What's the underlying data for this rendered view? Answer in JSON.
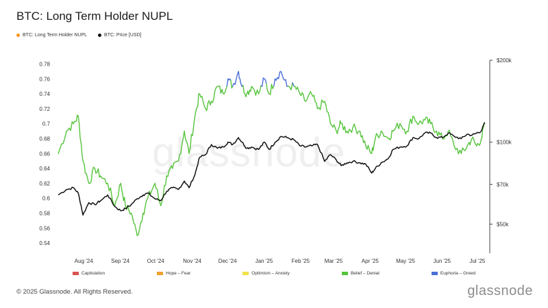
{
  "header": {
    "title": "BTC: Long Term Holder NUPL"
  },
  "legend": [
    {
      "label": "BTC: Long Term Holder NUPL",
      "color": "#f7931a"
    },
    {
      "label": "BTC: Price [USD]",
      "color": "#111111"
    }
  ],
  "regimes": [
    {
      "label": "Capitulation",
      "color": "#d9534f"
    },
    {
      "label": "Hope – Fear",
      "color": "#f0a030"
    },
    {
      "label": "Optimism – Anxiety",
      "color": "#f2e14a"
    },
    {
      "label": "Belief – Denial",
      "color": "#55c43b"
    },
    {
      "label": "Euphoria – Greed",
      "color": "#4a6fd8"
    }
  ],
  "footer": {
    "copyright": "© 2025 Glassnode. All Rights Reserved.",
    "brand": "glassnode"
  },
  "watermark": "glassnode",
  "chart_data": {
    "type": "line",
    "title": "BTC: Long Term Holder NUPL",
    "x_ticks": [
      "Aug '24",
      "Sep '24",
      "Oct '24",
      "Nov '24",
      "Dec '24",
      "Jan '25",
      "Feb '25",
      "Mar '25",
      "Apr '25",
      "May '25",
      "Jun '25",
      "Jul '25"
    ],
    "y_left_ticks": [
      "0.54",
      "0.56",
      "0.58",
      "0.6",
      "0.62",
      "0.64",
      "0.66",
      "0.68",
      "0.7",
      "0.72",
      "0.74",
      "0.76",
      "0.78"
    ],
    "y_left_range": [
      0.53,
      0.785
    ],
    "y_right_ticks": [
      "$50k",
      "$70k",
      "$100k",
      "$200k"
    ],
    "y_right_tick_values": [
      50000,
      70000,
      100000,
      200000
    ],
    "y_right_scale": "log",
    "y_right_range": [
      40000,
      200000
    ],
    "x_range": [
      "2024-07-15",
      "2025-07-15"
    ],
    "grid": false,
    "series": [
      {
        "name": "BTC: Long Term Holder NUPL",
        "axis": "left",
        "colored_by_regime": true,
        "x": [
          "2024-07-15",
          "2024-07-22",
          "2024-07-28",
          "2024-08-01",
          "2024-08-05",
          "2024-08-10",
          "2024-08-15",
          "2024-08-20",
          "2024-08-26",
          "2024-09-01",
          "2024-09-06",
          "2024-09-10",
          "2024-09-15",
          "2024-09-20",
          "2024-09-25",
          "2024-09-29",
          "2024-10-05",
          "2024-10-10",
          "2024-10-15",
          "2024-10-20",
          "2024-10-25",
          "2024-10-30",
          "2024-11-03",
          "2024-11-08",
          "2024-11-12",
          "2024-11-17",
          "2024-11-22",
          "2024-11-27",
          "2024-12-02",
          "2024-12-06",
          "2024-12-10",
          "2024-12-15",
          "2024-12-18",
          "2024-12-22",
          "2024-12-26",
          "2025-01-01",
          "2025-01-06",
          "2025-01-10",
          "2025-01-15",
          "2025-01-20",
          "2025-01-25",
          "2025-01-31",
          "2025-02-05",
          "2025-02-10",
          "2025-02-15",
          "2025-02-20",
          "2025-02-26",
          "2025-03-03",
          "2025-03-08",
          "2025-03-12",
          "2025-03-17",
          "2025-03-22",
          "2025-03-28",
          "2025-04-02",
          "2025-04-07",
          "2025-04-10",
          "2025-04-15",
          "2025-04-21",
          "2025-04-25",
          "2025-05-01",
          "2025-05-07",
          "2025-05-12",
          "2025-05-17",
          "2025-05-22",
          "2025-05-27",
          "2025-06-01",
          "2025-06-06",
          "2025-06-11",
          "2025-06-16",
          "2025-06-22",
          "2025-06-27",
          "2025-07-01",
          "2025-07-05",
          "2025-07-09",
          "2025-07-12"
        ],
        "values": [
          0.66,
          0.69,
          0.7,
          0.71,
          0.65,
          0.62,
          0.64,
          0.63,
          0.62,
          0.59,
          0.62,
          0.59,
          0.58,
          0.55,
          0.58,
          0.6,
          0.62,
          0.59,
          0.63,
          0.64,
          0.65,
          0.69,
          0.66,
          0.71,
          0.74,
          0.72,
          0.73,
          0.75,
          0.74,
          0.76,
          0.75,
          0.77,
          0.75,
          0.74,
          0.75,
          0.74,
          0.76,
          0.74,
          0.76,
          0.77,
          0.75,
          0.75,
          0.74,
          0.73,
          0.74,
          0.72,
          0.73,
          0.7,
          0.69,
          0.7,
          0.69,
          0.695,
          0.69,
          0.67,
          0.66,
          0.68,
          0.69,
          0.68,
          0.69,
          0.7,
          0.69,
          0.71,
          0.7,
          0.705,
          0.7,
          0.69,
          0.68,
          0.69,
          0.67,
          0.66,
          0.67,
          0.68,
          0.67,
          0.68,
          0.7
        ],
        "regime": "Belief – Denial / Euphoria – Greed"
      },
      {
        "name": "BTC: Price [USD]",
        "axis": "right",
        "color": "#111111",
        "x": [
          "2024-07-15",
          "2024-07-22",
          "2024-07-28",
          "2024-08-01",
          "2024-08-05",
          "2024-08-10",
          "2024-08-15",
          "2024-08-20",
          "2024-08-26",
          "2024-09-01",
          "2024-09-06",
          "2024-09-10",
          "2024-09-15",
          "2024-09-20",
          "2024-09-25",
          "2024-09-29",
          "2024-10-05",
          "2024-10-10",
          "2024-10-15",
          "2024-10-20",
          "2024-10-25",
          "2024-10-30",
          "2024-11-03",
          "2024-11-08",
          "2024-11-12",
          "2024-11-17",
          "2024-11-22",
          "2024-11-27",
          "2024-12-02",
          "2024-12-06",
          "2024-12-10",
          "2024-12-15",
          "2024-12-18",
          "2024-12-22",
          "2024-12-26",
          "2025-01-01",
          "2025-01-06",
          "2025-01-10",
          "2025-01-15",
          "2025-01-20",
          "2025-01-25",
          "2025-01-31",
          "2025-02-05",
          "2025-02-10",
          "2025-02-15",
          "2025-02-20",
          "2025-02-26",
          "2025-03-03",
          "2025-03-08",
          "2025-03-12",
          "2025-03-17",
          "2025-03-22",
          "2025-03-28",
          "2025-04-02",
          "2025-04-07",
          "2025-04-10",
          "2025-04-15",
          "2025-04-21",
          "2025-04-25",
          "2025-05-01",
          "2025-05-07",
          "2025-05-12",
          "2025-05-17",
          "2025-05-22",
          "2025-05-27",
          "2025-06-01",
          "2025-06-06",
          "2025-06-11",
          "2025-06-16",
          "2025-06-22",
          "2025-06-27",
          "2025-07-01",
          "2025-07-05",
          "2025-07-09",
          "2025-07-12"
        ],
        "values": [
          64000,
          67000,
          68000,
          65000,
          54000,
          60000,
          59000,
          61000,
          64000,
          58000,
          56000,
          57000,
          59000,
          62000,
          64000,
          65000,
          62000,
          61000,
          66000,
          68000,
          67000,
          72000,
          68000,
          76000,
          88000,
          90000,
          98000,
          95000,
          96000,
          100000,
          98000,
          104000,
          100000,
          95000,
          96000,
          94000,
          100000,
          94000,
          100000,
          105000,
          104000,
          102000,
          97000,
          96000,
          97000,
          98000,
          85000,
          90000,
          86000,
          82000,
          84000,
          85000,
          84000,
          83000,
          77000,
          80000,
          84000,
          87000,
          94000,
          96000,
          97000,
          104000,
          103000,
          108000,
          108000,
          104000,
          104000,
          108000,
          105000,
          103000,
          107000,
          106000,
          108000,
          110000,
          118000
        ]
      }
    ]
  }
}
